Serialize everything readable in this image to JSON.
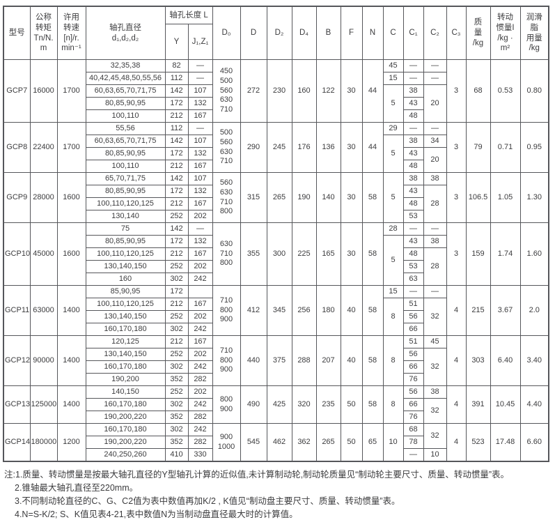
{
  "colors": {
    "border": "#55565a",
    "text": "#3c3c3e",
    "background": "#ffffff"
  },
  "table": {
    "header_rows": [
      [
        {
          "t": "型号",
          "rs": 2,
          "n": "header-model"
        },
        {
          "t": "公称\n转矩\nTn/N.\nm",
          "rs": 2,
          "n": "header-torque"
        },
        {
          "t": "许用\n转速\n[n]/r.\nmin⁻¹",
          "rs": 2,
          "n": "header-speed"
        },
        {
          "t": "轴孔直径\nd₁,d₂,d₂",
          "rs": 2,
          "n": "header-bore-diameter"
        },
        {
          "t": "轴孔长度 L",
          "cs": 2,
          "n": "header-bore-length",
          "cls": "span-l"
        },
        {
          "t": "D₀",
          "rs": 2,
          "n": "header-d0"
        },
        {
          "t": "D",
          "rs": 2,
          "n": "header-d"
        },
        {
          "t": "D₂",
          "rs": 2,
          "n": "header-d2"
        },
        {
          "t": "D₄",
          "rs": 2,
          "n": "header-d4"
        },
        {
          "t": "B",
          "rs": 2,
          "n": "header-b"
        },
        {
          "t": "F",
          "rs": 2,
          "n": "header-f"
        },
        {
          "t": "N",
          "rs": 2,
          "n": "header-n"
        },
        {
          "t": "C",
          "rs": 2,
          "n": "header-c"
        },
        {
          "t": "C₁",
          "rs": 2,
          "n": "header-c1"
        },
        {
          "t": "C₂",
          "rs": 2,
          "n": "header-c2"
        },
        {
          "t": "C₃",
          "rs": 2,
          "n": "header-c3"
        },
        {
          "t": "质\n量\n/kg",
          "rs": 2,
          "n": "header-mass"
        },
        {
          "t": "转动\n惯量I\n/kg ·\nm²",
          "rs": 2,
          "n": "header-inertia"
        },
        {
          "t": "润滑\n脂\n用量\n/kg",
          "rs": 2,
          "n": "header-grease"
        }
      ],
      [
        {
          "t": "Y",
          "n": "header-y"
        },
        {
          "t": "J₁,Z₁",
          "n": "header-j1z1"
        }
      ]
    ],
    "body_rows": [
      [
        {
          "t": "GCP7",
          "rs": 5,
          "n": "model-cell"
        },
        {
          "t": "16000",
          "rs": 5
        },
        {
          "t": "1700",
          "rs": 5
        },
        {
          "t": "32,35,38"
        },
        {
          "t": "82"
        },
        {
          "t": "—"
        },
        {
          "t": "450\n500\n560\n630\n710",
          "rs": 5
        },
        {
          "t": "272",
          "rs": 5
        },
        {
          "t": "230",
          "rs": 5
        },
        {
          "t": "160",
          "rs": 5
        },
        {
          "t": "122",
          "rs": 5
        },
        {
          "t": "30",
          "rs": 5
        },
        {
          "t": "44",
          "rs": 5
        },
        {
          "t": "45"
        },
        {
          "t": "—"
        },
        {
          "t": "—"
        },
        {
          "t": "3",
          "rs": 5
        },
        {
          "t": "68",
          "rs": 5
        },
        {
          "t": "0.53",
          "rs": 5
        },
        {
          "t": "0.80",
          "rs": 5
        }
      ],
      [
        {
          "t": "40,42,45,48,50,55,56"
        },
        {
          "t": "112"
        },
        {
          "t": "—"
        },
        {
          "t": "15"
        },
        {
          "t": "—"
        },
        {
          "t": "—"
        }
      ],
      [
        {
          "t": "60,63,65,70,71,75"
        },
        {
          "t": "142"
        },
        {
          "t": "107"
        },
        {
          "t": "5",
          "rs": 3
        },
        {
          "t": "38"
        },
        {
          "t": "20",
          "rs": 3
        }
      ],
      [
        {
          "t": "80,85,90,95"
        },
        {
          "t": "172"
        },
        {
          "t": "132"
        },
        {
          "t": "43"
        }
      ],
      [
        {
          "t": "100,110"
        },
        {
          "t": "212"
        },
        {
          "t": "167"
        },
        {
          "t": "48"
        }
      ],
      [
        {
          "t": "GCP8",
          "rs": 4,
          "n": "model-cell"
        },
        {
          "t": "22400",
          "rs": 4
        },
        {
          "t": "1700",
          "rs": 4
        },
        {
          "t": "55,56"
        },
        {
          "t": "112"
        },
        {
          "t": "—"
        },
        {
          "t": "500\n560\n630\n710",
          "rs": 4
        },
        {
          "t": "290",
          "rs": 4
        },
        {
          "t": "245",
          "rs": 4
        },
        {
          "t": "176",
          "rs": 4
        },
        {
          "t": "136",
          "rs": 4
        },
        {
          "t": "30",
          "rs": 4
        },
        {
          "t": "44",
          "rs": 4
        },
        {
          "t": "29"
        },
        {
          "t": "—"
        },
        {
          "t": "—"
        },
        {
          "t": "3",
          "rs": 4
        },
        {
          "t": "79",
          "rs": 4
        },
        {
          "t": "0.71",
          "rs": 4
        },
        {
          "t": "0.95",
          "rs": 4
        }
      ],
      [
        {
          "t": "60,63,65,70,71,75"
        },
        {
          "t": "142"
        },
        {
          "t": "107"
        },
        {
          "t": "5",
          "rs": 3
        },
        {
          "t": "38"
        },
        {
          "t": "34"
        }
      ],
      [
        {
          "t": "80,85,90,95"
        },
        {
          "t": "172"
        },
        {
          "t": "132"
        },
        {
          "t": "43"
        },
        {
          "t": "20",
          "rs": 2
        }
      ],
      [
        {
          "t": "100,110"
        },
        {
          "t": "212"
        },
        {
          "t": "167"
        },
        {
          "t": "48"
        }
      ],
      [
        {
          "t": "GCP9",
          "rs": 4,
          "n": "model-cell"
        },
        {
          "t": "28000",
          "rs": 4
        },
        {
          "t": "1600",
          "rs": 4
        },
        {
          "t": "65,70,71,75"
        },
        {
          "t": "142"
        },
        {
          "t": "107"
        },
        {
          "t": "560\n630\n710\n800",
          "rs": 4
        },
        {
          "t": "315",
          "rs": 4
        },
        {
          "t": "265",
          "rs": 4
        },
        {
          "t": "190",
          "rs": 4
        },
        {
          "t": "140",
          "rs": 4
        },
        {
          "t": "30",
          "rs": 4
        },
        {
          "t": "58",
          "rs": 4
        },
        {
          "t": "5",
          "rs": 4
        },
        {
          "t": "38"
        },
        {
          "t": "38"
        },
        {
          "t": "3",
          "rs": 4
        },
        {
          "t": "106.5",
          "rs": 4
        },
        {
          "t": "1.05",
          "rs": 4
        },
        {
          "t": "1.30",
          "rs": 4
        }
      ],
      [
        {
          "t": "80,85,90,95"
        },
        {
          "t": "172"
        },
        {
          "t": "132"
        },
        {
          "t": "43"
        },
        {
          "t": "28",
          "rs": 3
        }
      ],
      [
        {
          "t": "100,110,120,125"
        },
        {
          "t": "212"
        },
        {
          "t": "167"
        },
        {
          "t": "48"
        }
      ],
      [
        {
          "t": "130,140"
        },
        {
          "t": "252"
        },
        {
          "t": "202"
        },
        {
          "t": "53"
        }
      ],
      [
        {
          "t": "GCP10",
          "rs": 5,
          "n": "model-cell"
        },
        {
          "t": "45000",
          "rs": 5
        },
        {
          "t": "1600",
          "rs": 5
        },
        {
          "t": "75"
        },
        {
          "t": "142"
        },
        {
          "t": "—"
        },
        {
          "t": "630\n710\n800",
          "rs": 5
        },
        {
          "t": "355",
          "rs": 5
        },
        {
          "t": "300",
          "rs": 5
        },
        {
          "t": "225",
          "rs": 5
        },
        {
          "t": "165",
          "rs": 5
        },
        {
          "t": "30",
          "rs": 5
        },
        {
          "t": "58",
          "rs": 5
        },
        {
          "t": "28"
        },
        {
          "t": "—"
        },
        {
          "t": "—"
        },
        {
          "t": "3",
          "rs": 5
        },
        {
          "t": "159",
          "rs": 5
        },
        {
          "t": "1.74",
          "rs": 5
        },
        {
          "t": "1.60",
          "rs": 5
        }
      ],
      [
        {
          "t": "80,85,90,95"
        },
        {
          "t": "172"
        },
        {
          "t": "132"
        },
        {
          "t": "5",
          "rs": 4
        },
        {
          "t": "43"
        },
        {
          "t": "38"
        }
      ],
      [
        {
          "t": "100,110,120,125"
        },
        {
          "t": "212"
        },
        {
          "t": "167"
        },
        {
          "t": "48"
        },
        {
          "t": "28",
          "rs": 3
        }
      ],
      [
        {
          "t": "130,140,150"
        },
        {
          "t": "252"
        },
        {
          "t": "202"
        },
        {
          "t": "53"
        }
      ],
      [
        {
          "t": "160"
        },
        {
          "t": "302"
        },
        {
          "t": "242"
        },
        {
          "t": "63"
        }
      ],
      [
        {
          "t": "GCP11",
          "rs": 4,
          "n": "model-cell"
        },
        {
          "t": "63000",
          "rs": 4
        },
        {
          "t": "1400",
          "rs": 4
        },
        {
          "t": "85,90,95"
        },
        {
          "t": "172"
        },
        {
          "t": ""
        },
        {
          "t": "710\n800\n900",
          "rs": 4
        },
        {
          "t": "412",
          "rs": 4
        },
        {
          "t": "345",
          "rs": 4
        },
        {
          "t": "256",
          "rs": 4
        },
        {
          "t": "180",
          "rs": 4
        },
        {
          "t": "40",
          "rs": 4
        },
        {
          "t": "58",
          "rs": 4
        },
        {
          "t": "15"
        },
        {
          "t": "—"
        },
        {
          "t": "—"
        },
        {
          "t": "4",
          "rs": 4
        },
        {
          "t": "215",
          "rs": 4
        },
        {
          "t": "3.67",
          "rs": 4
        },
        {
          "t": "2.0",
          "rs": 4
        }
      ],
      [
        {
          "t": "100,110,120,125"
        },
        {
          "t": "212"
        },
        {
          "t": "167"
        },
        {
          "t": "8",
          "rs": 3
        },
        {
          "t": "51"
        },
        {
          "t": "32",
          "rs": 3
        }
      ],
      [
        {
          "t": "130,140,150"
        },
        {
          "t": "252"
        },
        {
          "t": "202"
        },
        {
          "t": "56"
        }
      ],
      [
        {
          "t": "160,170,180"
        },
        {
          "t": "302"
        },
        {
          "t": "242"
        },
        {
          "t": "66"
        }
      ],
      [
        {
          "t": "GCP12",
          "rs": 4,
          "n": "model-cell"
        },
        {
          "t": "90000",
          "rs": 4
        },
        {
          "t": "1400",
          "rs": 4
        },
        {
          "t": "120,125"
        },
        {
          "t": "212"
        },
        {
          "t": "167"
        },
        {
          "t": "710\n800\n900",
          "rs": 4
        },
        {
          "t": "440",
          "rs": 4
        },
        {
          "t": "375",
          "rs": 4
        },
        {
          "t": "288",
          "rs": 4
        },
        {
          "t": "207",
          "rs": 4
        },
        {
          "t": "40",
          "rs": 4
        },
        {
          "t": "58",
          "rs": 4
        },
        {
          "t": "8",
          "rs": 4
        },
        {
          "t": "51"
        },
        {
          "t": "45"
        },
        {
          "t": "4",
          "rs": 4
        },
        {
          "t": "303",
          "rs": 4
        },
        {
          "t": "6.40",
          "rs": 4
        },
        {
          "t": "3.40",
          "rs": 4
        }
      ],
      [
        {
          "t": "130,140,150"
        },
        {
          "t": "252"
        },
        {
          "t": "202"
        },
        {
          "t": "56"
        },
        {
          "t": "32",
          "rs": 3
        }
      ],
      [
        {
          "t": "160,170,180"
        },
        {
          "t": "302"
        },
        {
          "t": "242"
        },
        {
          "t": "66"
        }
      ],
      [
        {
          "t": "190,200"
        },
        {
          "t": "352"
        },
        {
          "t": "282"
        },
        {
          "t": "76"
        }
      ],
      [
        {
          "t": "GCP13",
          "rs": 3,
          "n": "model-cell"
        },
        {
          "t": "125000",
          "rs": 3
        },
        {
          "t": "1400",
          "rs": 3
        },
        {
          "t": "140,150"
        },
        {
          "t": "252"
        },
        {
          "t": "202"
        },
        {
          "t": "800\n900",
          "rs": 3
        },
        {
          "t": "490",
          "rs": 3
        },
        {
          "t": "425",
          "rs": 3
        },
        {
          "t": "320",
          "rs": 3
        },
        {
          "t": "235",
          "rs": 3
        },
        {
          "t": "50",
          "rs": 3
        },
        {
          "t": "58",
          "rs": 3
        },
        {
          "t": "8",
          "rs": 3
        },
        {
          "t": "56"
        },
        {
          "t": "38"
        },
        {
          "t": "4",
          "rs": 3
        },
        {
          "t": "391",
          "rs": 3
        },
        {
          "t": "10.45",
          "rs": 3
        },
        {
          "t": "4.40",
          "rs": 3
        }
      ],
      [
        {
          "t": "160,170,180"
        },
        {
          "t": "302"
        },
        {
          "t": "242"
        },
        {
          "t": "66"
        },
        {
          "t": "32",
          "rs": 2
        }
      ],
      [
        {
          "t": "190,200,220"
        },
        {
          "t": "352"
        },
        {
          "t": "282"
        },
        {
          "t": "76"
        }
      ],
      [
        {
          "t": "GCP14",
          "rs": 3,
          "n": "model-cell"
        },
        {
          "t": "180000",
          "rs": 3
        },
        {
          "t": "1200",
          "rs": 3
        },
        {
          "t": "160,170,180"
        },
        {
          "t": "302"
        },
        {
          "t": "242"
        },
        {
          "t": "900\n1000",
          "rs": 3
        },
        {
          "t": "545",
          "rs": 3
        },
        {
          "t": "462",
          "rs": 3
        },
        {
          "t": "362",
          "rs": 3
        },
        {
          "t": "265",
          "rs": 3
        },
        {
          "t": "50",
          "rs": 3
        },
        {
          "t": "65",
          "rs": 3
        },
        {
          "t": "10",
          "rs": 3
        },
        {
          "t": "68"
        },
        {
          "t": "32",
          "rs": 2
        },
        {
          "t": "4",
          "rs": 3
        },
        {
          "t": "523",
          "rs": 3
        },
        {
          "t": "17.48",
          "rs": 3
        },
        {
          "t": "6.60",
          "rs": 3
        }
      ],
      [
        {
          "t": "190,200,220"
        },
        {
          "t": "352"
        },
        {
          "t": "282"
        },
        {
          "t": "78"
        }
      ],
      [
        {
          "t": "240,250,260"
        },
        {
          "t": "410"
        },
        {
          "t": "330"
        },
        {
          "t": "—"
        },
        {
          "t": "10"
        }
      ]
    ]
  },
  "notes": [
    "注:1.质量、转动惯量是按最大轴孔直径的Y型轴孔计算的近似值,未计算制动轮,制动轮质量见“制动轮主要尺寸、质量、转动惯量”表。",
    "2.锥轴最大轴孔直径至220mm。",
    "3.不同制动轮直径的C、G、C2值为表中数值再加K/2 , K值见“制动盘主要尺寸、质量、转动惯量”表。",
    "4.N=S-K/2; S、K值见表4-21,表中数值N为当制动盘直径最大时的计算值。"
  ]
}
